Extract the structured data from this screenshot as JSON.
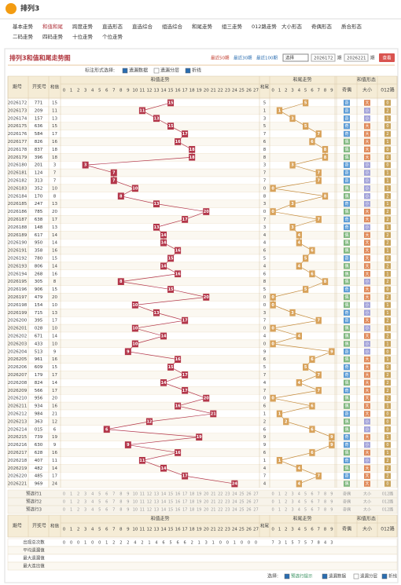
{
  "header": {
    "logo": "排列3"
  },
  "nav": [
    "基本走势",
    "和值和尾",
    "跨度走势",
    "直选形态",
    "直选综合",
    "组选综合",
    "和尾走势",
    "组三走势",
    "012路走势",
    "大小形态",
    "奇偶形态",
    "质合形态",
    "二码走势",
    "四码走势",
    "十位走势",
    "个位走势"
  ],
  "panel": {
    "title": "排列3和值和尾走势图",
    "ranges": [
      "最近50期",
      "最近30期",
      "最近100期"
    ],
    "select": "选择",
    "from": "2026172",
    "to": "2026221",
    "unit": "期",
    "query": "查看"
  },
  "options": {
    "label": "标注形式选择:",
    "items": [
      "遗漏数据",
      "遗漏分层",
      "折线"
    ]
  },
  "columns": {
    "period": "期号",
    "number": "开奖号",
    "sum": "和值",
    "sum_trend": "和值走势",
    "tail": "和尾",
    "tail_trend": "和尾走势",
    "form": "和值形态",
    "oe": "奇偶",
    "bs": "大小",
    "mod": "012路"
  },
  "sum_cols": [
    0,
    1,
    2,
    3,
    4,
    5,
    6,
    7,
    8,
    9,
    10,
    11,
    12,
    13,
    14,
    15,
    16,
    17,
    18,
    19,
    20,
    21,
    22,
    23,
    24,
    25,
    26,
    27
  ],
  "tail_cols": [
    0,
    1,
    2,
    3,
    4,
    5,
    6,
    7,
    8,
    9
  ],
  "rows": [
    [
      "2026172",
      "771",
      15,
      5,
      "奇",
      "大",
      "0"
    ],
    [
      "2026173",
      "209",
      11,
      1,
      "奇",
      "小",
      "2"
    ],
    [
      "2026174",
      "157",
      13,
      3,
      "奇",
      "小",
      "1"
    ],
    [
      "2026175",
      "636",
      15,
      5,
      "奇",
      "大",
      "0"
    ],
    [
      "2026176",
      "584",
      17,
      7,
      "奇",
      "大",
      "2"
    ],
    [
      "2026177",
      "826",
      16,
      6,
      "偶",
      "大",
      "1"
    ],
    [
      "2026178",
      "837",
      18,
      8,
      "偶",
      "大",
      "0"
    ],
    [
      "2026179",
      "396",
      18,
      8,
      "偶",
      "大",
      "0"
    ],
    [
      "2026180",
      "201",
      3,
      3,
      "奇",
      "小",
      "0"
    ],
    [
      "2026181",
      "124",
      7,
      7,
      "奇",
      "小",
      "1"
    ],
    [
      "2026182",
      "313",
      7,
      7,
      "奇",
      "小",
      "1"
    ],
    [
      "2026183",
      "352",
      10,
      0,
      "偶",
      "小",
      "1"
    ],
    [
      "2026184",
      "170",
      8,
      8,
      "偶",
      "小",
      "2"
    ],
    [
      "2026185",
      "247",
      13,
      3,
      "奇",
      "小",
      "1"
    ],
    [
      "2026186",
      "785",
      20,
      0,
      "偶",
      "大",
      "2"
    ],
    [
      "2026187",
      "638",
      17,
      7,
      "奇",
      "大",
      "2"
    ],
    [
      "2026188",
      "148",
      13,
      3,
      "奇",
      "小",
      "1"
    ],
    [
      "2026189",
      "617",
      14,
      4,
      "偶",
      "大",
      "2"
    ],
    [
      "2026190",
      "950",
      14,
      4,
      "偶",
      "大",
      "2"
    ],
    [
      "2026191",
      "358",
      16,
      6,
      "偶",
      "大",
      "1"
    ],
    [
      "2026192",
      "780",
      15,
      5,
      "奇",
      "大",
      "0"
    ],
    [
      "2026193",
      "806",
      14,
      4,
      "偶",
      "大",
      "2"
    ],
    [
      "2026194",
      "268",
      16,
      6,
      "偶",
      "大",
      "1"
    ],
    [
      "2026195",
      "305",
      8,
      8,
      "偶",
      "小",
      "2"
    ],
    [
      "2026196",
      "906",
      15,
      5,
      "奇",
      "大",
      "0"
    ],
    [
      "2026197",
      "479",
      20,
      0,
      "偶",
      "大",
      "2"
    ],
    [
      "2026198",
      "154",
      10,
      0,
      "偶",
      "小",
      "1"
    ],
    [
      "2026199",
      "715",
      13,
      3,
      "奇",
      "小",
      "1"
    ],
    [
      "2026200",
      "395",
      17,
      7,
      "奇",
      "大",
      "2"
    ],
    [
      "2026201",
      "028",
      10,
      0,
      "偶",
      "小",
      "1"
    ],
    [
      "2026202",
      "671",
      14,
      4,
      "偶",
      "大",
      "2"
    ],
    [
      "2026203",
      "433",
      10,
      0,
      "偶",
      "小",
      "1"
    ],
    [
      "2026204",
      "513",
      9,
      9,
      "奇",
      "小",
      "0"
    ],
    [
      "2026205",
      "961",
      16,
      6,
      "偶",
      "大",
      "1"
    ],
    [
      "2026206",
      "609",
      15,
      5,
      "奇",
      "大",
      "0"
    ],
    [
      "2026207",
      "179",
      17,
      7,
      "奇",
      "大",
      "2"
    ],
    [
      "2026208",
      "824",
      14,
      4,
      "偶",
      "大",
      "2"
    ],
    [
      "2026209",
      "566",
      17,
      7,
      "奇",
      "大",
      "2"
    ],
    [
      "2026210",
      "956",
      20,
      0,
      "偶",
      "大",
      "2"
    ],
    [
      "2026211",
      "934",
      16,
      6,
      "偶",
      "大",
      "1"
    ],
    [
      "2026212",
      "984",
      21,
      1,
      "奇",
      "大",
      "0"
    ],
    [
      "2026213",
      "363",
      12,
      2,
      "偶",
      "小",
      "0"
    ],
    [
      "2026214",
      "015",
      6,
      6,
      "偶",
      "小",
      "0"
    ],
    [
      "2026215",
      "739",
      19,
      9,
      "奇",
      "大",
      "1"
    ],
    [
      "2026216",
      "630",
      9,
      9,
      "奇",
      "小",
      "0"
    ],
    [
      "2026217",
      "628",
      16,
      6,
      "偶",
      "大",
      "1"
    ],
    [
      "2026218",
      "407",
      11,
      1,
      "奇",
      "小",
      "2"
    ],
    [
      "2026219",
      "482",
      14,
      4,
      "偶",
      "大",
      "2"
    ],
    [
      "2026220",
      "485",
      17,
      7,
      "奇",
      "大",
      "2"
    ],
    [
      "2026221",
      "969",
      24,
      4,
      "偶",
      "大",
      "0"
    ]
  ],
  "forecast": [
    "预选行1",
    "预选行2",
    "预选行3"
  ],
  "stats": {
    "labels": [
      "出现总次数",
      "平均遗漏值",
      "最大遗漏值",
      "最大连出值"
    ],
    "sum_counts": [
      0,
      0,
      0,
      1,
      0,
      0,
      1,
      2,
      2,
      2,
      4,
      2,
      1,
      4,
      6,
      5,
      6,
      6,
      2,
      1,
      3,
      1,
      0,
      0,
      1,
      0,
      0,
      0
    ],
    "tail_counts": [
      7,
      3,
      1,
      5,
      7,
      5,
      7,
      8,
      4,
      3
    ]
  },
  "footer": {
    "label": "选择:",
    "items": [
      "预选行提示",
      "遗漏数据",
      "遗漏分层",
      "折线"
    ]
  }
}
